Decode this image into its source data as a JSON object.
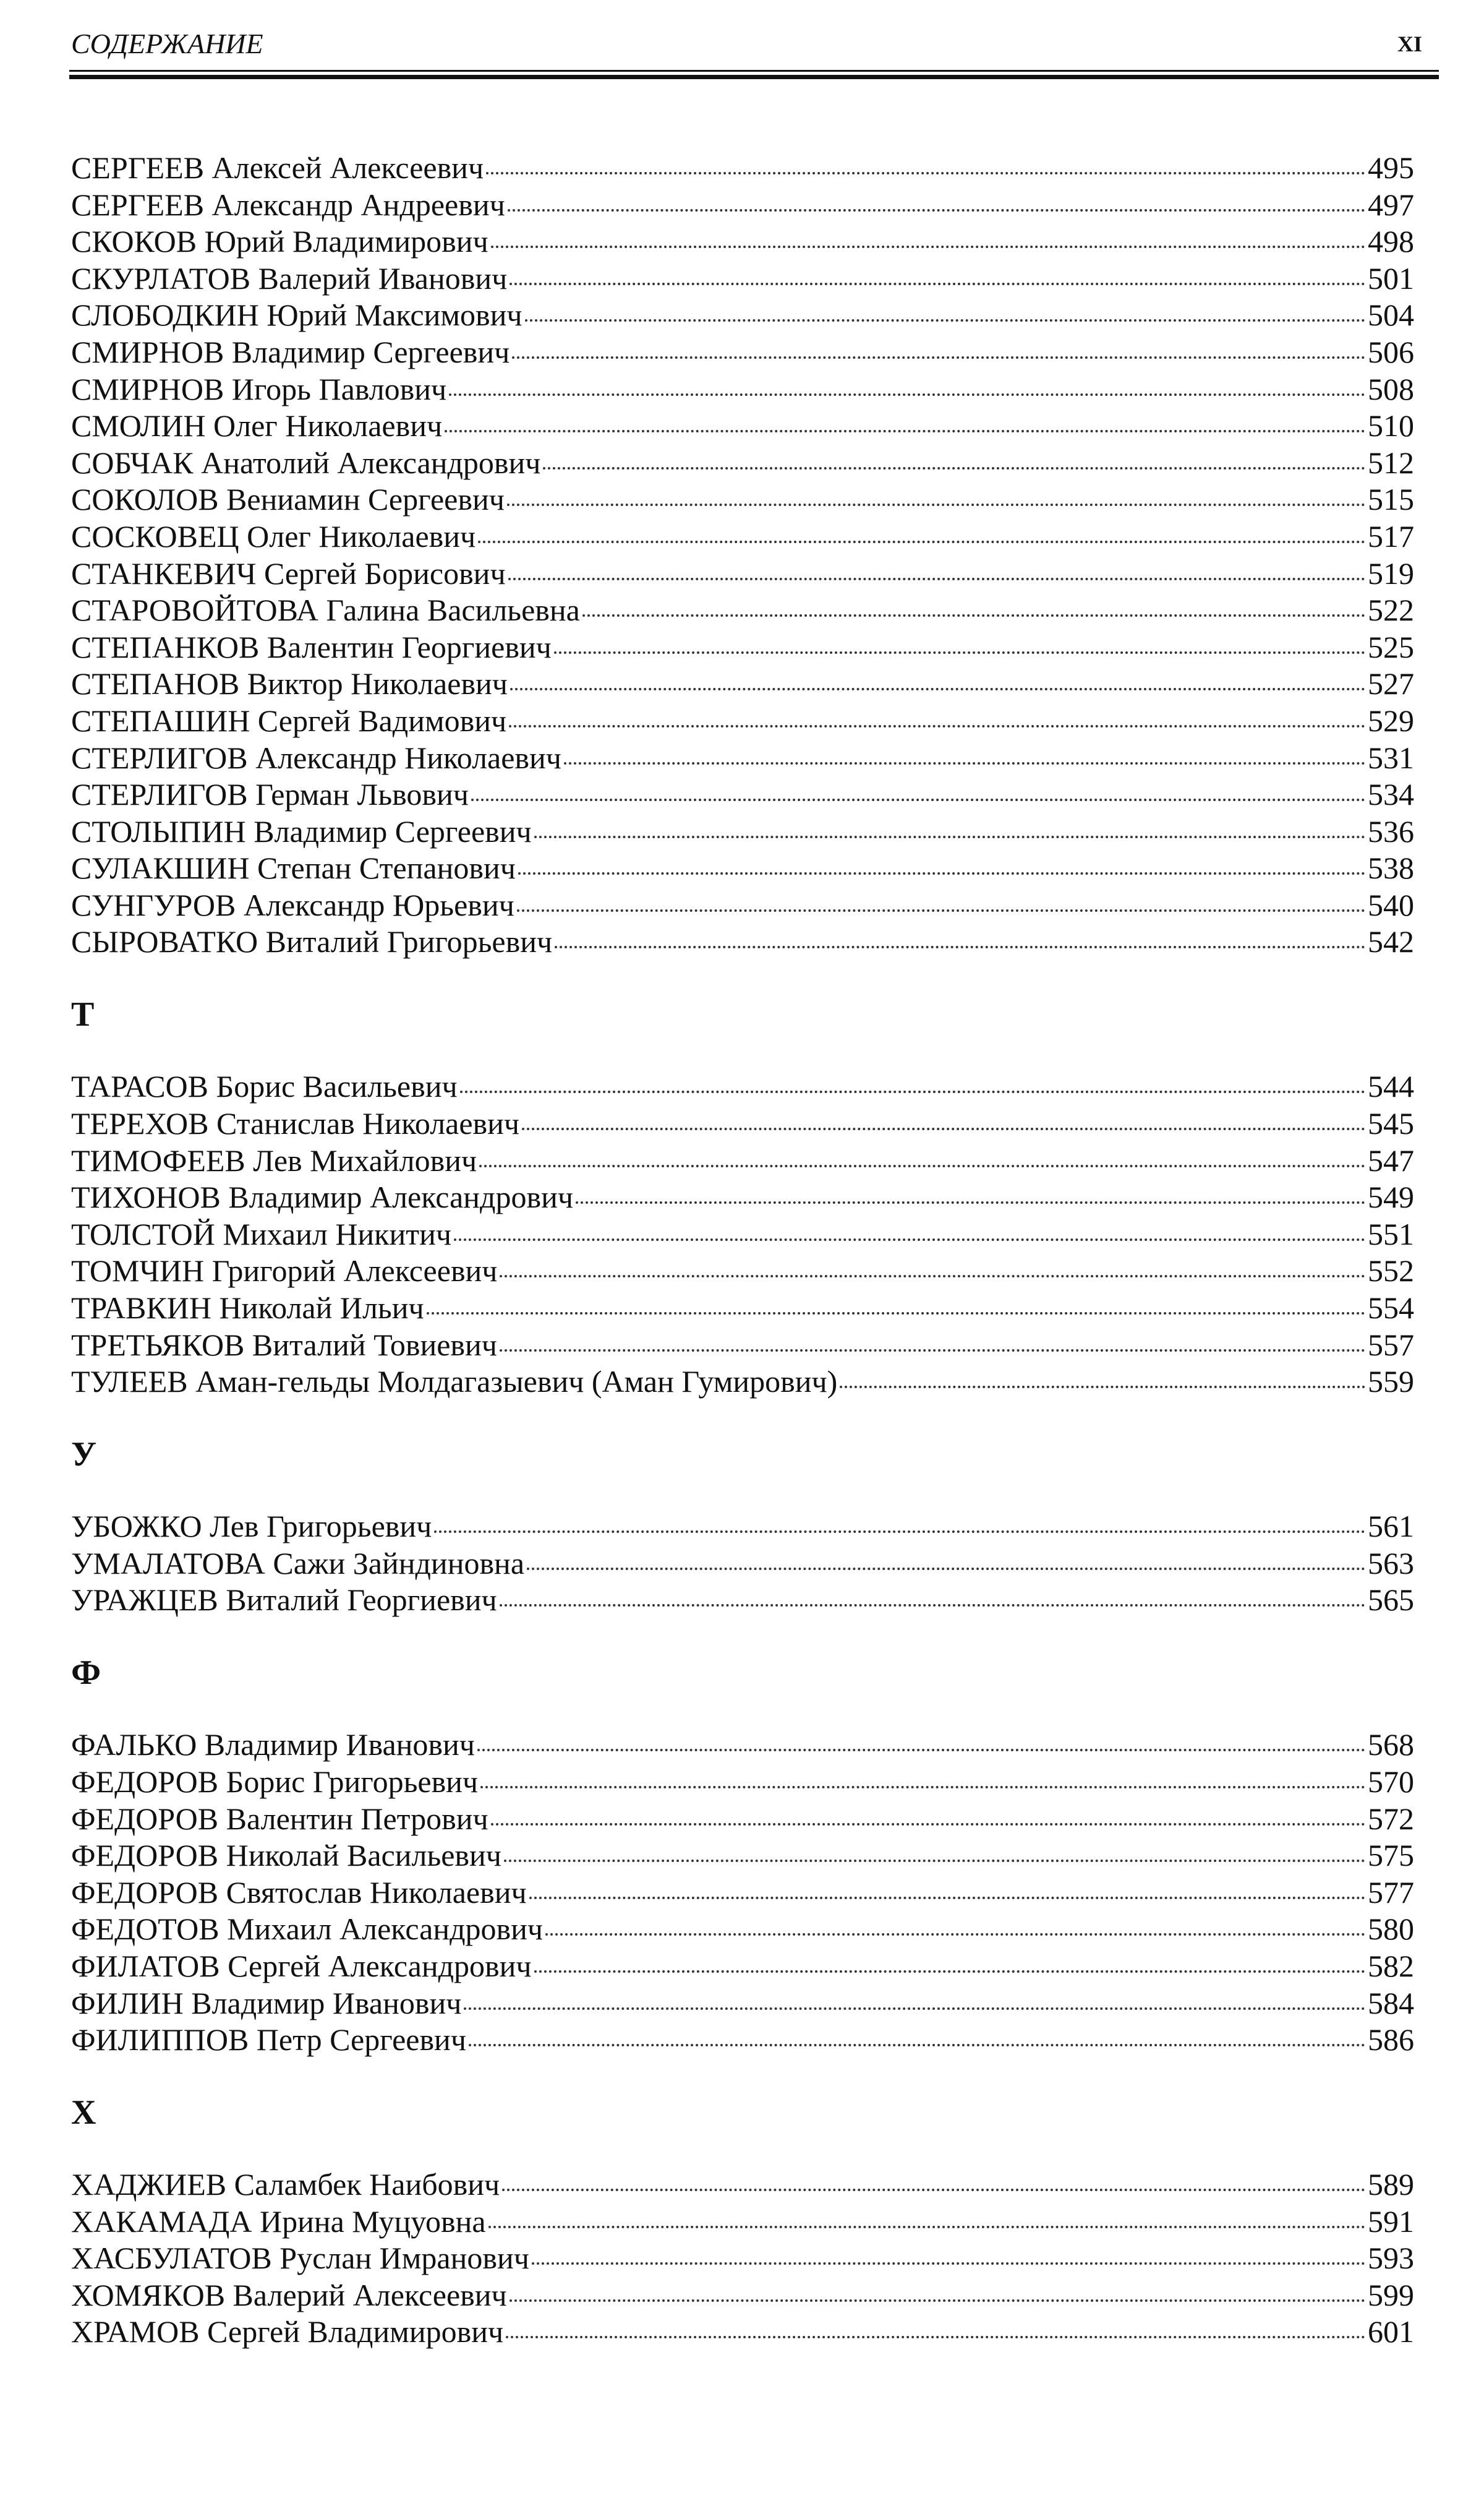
{
  "header": {
    "title": "СОДЕРЖАНИЕ",
    "page_number": "XI"
  },
  "sections": [
    {
      "entries": [
        {
          "name": "СЕРГЕЕВ Алексей Алексеевич",
          "page": 495
        },
        {
          "name": "СЕРГЕЕВ Александр Андреевич",
          "page": 497
        },
        {
          "name": "СКОКОВ Юрий Владимирович",
          "page": 498
        },
        {
          "name": "СКУРЛАТОВ Валерий Иванович",
          "page": 501
        },
        {
          "name": "СЛОБОДКИН Юрий Максимович",
          "page": 504
        },
        {
          "name": "СМИРНОВ Владимир Сергеевич",
          "page": 506
        },
        {
          "name": "СМИРНОВ Игорь Павлович",
          "page": 508
        },
        {
          "name": "СМОЛИН Олег Николаевич",
          "page": 510
        },
        {
          "name": "СОБЧАК Анатолий Александрович",
          "page": 512
        },
        {
          "name": "СОКОЛОВ Вениамин Сергеевич",
          "page": 515
        },
        {
          "name": "СОСКОВЕЦ Олег Николаевич",
          "page": 517
        },
        {
          "name": "СТАНКЕВИЧ Сергей Борисович",
          "page": 519
        },
        {
          "name": "СТАРОВОЙТОВА Галина Васильевна",
          "page": 522
        },
        {
          "name": "СТЕПАНКОВ Валентин Георгиевич",
          "page": 525
        },
        {
          "name": "СТЕПАНОВ Виктор Николаевич",
          "page": 527
        },
        {
          "name": "СТЕПАШИН Сергей Вадимович",
          "page": 529
        },
        {
          "name": "СТЕРЛИГОВ Александр Николаевич",
          "page": 531
        },
        {
          "name": "СТЕРЛИГОВ Герман Львович",
          "page": 534
        },
        {
          "name": "СТОЛЫПИН Владимир Сергеевич",
          "page": 536
        },
        {
          "name": "СУЛАКШИН Степан Степанович",
          "page": 538
        },
        {
          "name": "СУНГУРОВ Александр Юрьевич",
          "page": 540
        },
        {
          "name": "СЫРОВАТКО Виталий Григорьевич",
          "page": 542
        }
      ]
    },
    {
      "letter": "Т",
      "entries": [
        {
          "name": "ТАРАСОВ Борис Васильевич",
          "page": 544
        },
        {
          "name": "ТЕРЕХОВ Станислав Николаевич",
          "page": 545
        },
        {
          "name": "ТИМОФЕЕВ Лев Михайлович",
          "page": 547
        },
        {
          "name": "ТИХОНОВ Владимир Александрович",
          "page": 549
        },
        {
          "name": "ТОЛСТОЙ Михаил Никитич",
          "page": 551
        },
        {
          "name": "ТОМЧИН Григорий Алексеевич",
          "page": 552
        },
        {
          "name": "ТРАВКИН Николай Ильич",
          "page": 554
        },
        {
          "name": "ТРЕТЬЯКОВ Виталий Товиевич",
          "page": 557
        },
        {
          "name": "ТУЛЕЕВ Аман-гельды Молдагазыевич (Аман Гумирович)",
          "page": 559
        }
      ]
    },
    {
      "letter": "У",
      "entries": [
        {
          "name": "УБОЖКО Лев Григорьевич",
          "page": 561
        },
        {
          "name": "УМАЛАТОВА Сажи Зайндиновна",
          "page": 563
        },
        {
          "name": "УРАЖЦЕВ Виталий Георгиевич",
          "page": 565
        }
      ]
    },
    {
      "letter": "Ф",
      "entries": [
        {
          "name": "ФАЛЬКО Владимир Иванович",
          "page": 568
        },
        {
          "name": "ФЕДОРОВ Борис Григорьевич",
          "page": 570
        },
        {
          "name": "ФЕДОРОВ Валентин Петрович",
          "page": 572
        },
        {
          "name": "ФЕДОРОВ Николай Васильевич",
          "page": 575
        },
        {
          "name": "ФЕДОРОВ Святослав Николаевич",
          "page": 577
        },
        {
          "name": "ФЕДОТОВ Михаил Александрович",
          "page": 580
        },
        {
          "name": "ФИЛАТОВ Сергей Александрович",
          "page": 582
        },
        {
          "name": "ФИЛИН Владимир Иванович",
          "page": 584
        },
        {
          "name": "ФИЛИППОВ Петр Сергеевич",
          "page": 586
        }
      ]
    },
    {
      "letter": "Х",
      "entries": [
        {
          "name": "ХАДЖИЕВ Саламбек Наибович",
          "page": 589
        },
        {
          "name": "ХАКАМАДА Ирина Муцуовна",
          "page": 591
        },
        {
          "name": "ХАСБУЛАТОВ Руслан Имранович",
          "page": 593
        },
        {
          "name": "ХОМЯКОВ Валерий Алексеевич",
          "page": 599
        },
        {
          "name": "ХРАМОВ Сергей Владимирович",
          "page": 601
        }
      ]
    }
  ]
}
